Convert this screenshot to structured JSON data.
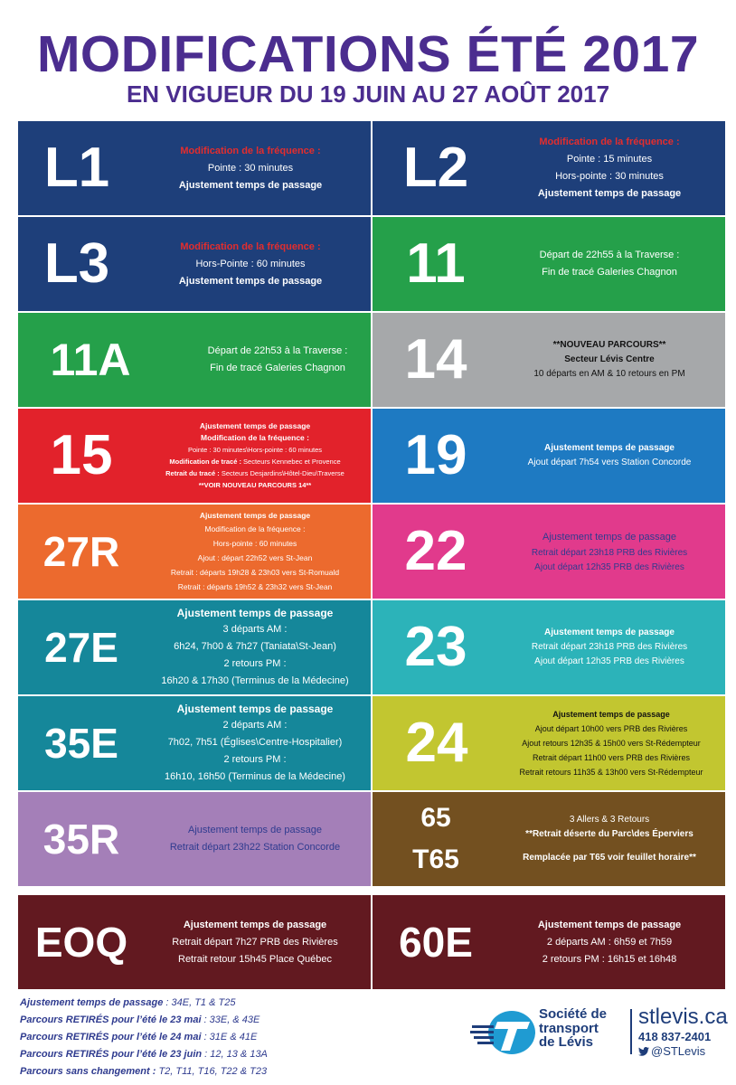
{
  "header": {
    "title": "MODIFICATIONS ÉTÉ 2017",
    "subtitle": "EN VIGUEUR DU 19 JUIN AU 27 AOÛT 2017"
  },
  "routes": {
    "l1": {
      "number": "L1",
      "bg": "#1e3f7a",
      "line1": "Modification de la fréquence :",
      "line2": "Pointe : 30 minutes",
      "line3": "Ajustement temps de passage"
    },
    "l2": {
      "number": "L2",
      "bg": "#1e3f7a",
      "line1": "Modification de la fréquence :",
      "line2": "Pointe : 15 minutes",
      "line3": "Hors-pointe : 30 minutes",
      "line4": "Ajustement temps de passage"
    },
    "l3": {
      "number": "L3",
      "bg": "#1e3f7a",
      "line1": "Modification de la fréquence :",
      "line2": "Hors-Pointe : 60 minutes",
      "line3": "Ajustement temps de passage"
    },
    "r11": {
      "number": "11",
      "bg": "#25a04a",
      "line1": "Départ de 22h55 à la Traverse :",
      "line2": "Fin de tracé Galeries Chagnon"
    },
    "r11a": {
      "number": "11A",
      "bg": "#25a04a",
      "line1": "Départ de 22h53 à la Traverse :",
      "line2": "Fin de tracé Galeries Chagnon"
    },
    "r14": {
      "number": "14",
      "bg": "#a6a8aa",
      "line1": "**NOUVEAU PARCOURS**",
      "line2": "Secteur Lévis Centre",
      "line3": "10 départs en AM & 10 retours en PM"
    },
    "r15": {
      "number": "15",
      "bg": "#e2222b",
      "line1": "Ajustement temps de passage",
      "line2": "Modification de la fréquence :",
      "line3": "Pointe : 30 minutes\\Hors-pointe : 60 minutes",
      "line4_label": "Modification de tracé :",
      "line4_text": " Secteurs Kennebec et Provence",
      "line5_label": "Retrait du tracé :",
      "line5_text": " Secteurs Desjardins\\Hôtel-Dieu\\Traverse",
      "line6": "**VOIR NOUVEAU PARCOURS 14**"
    },
    "r19": {
      "number": "19",
      "bg": "#1e7ac2",
      "line1": "Ajustement temps de passage",
      "line2": "Ajout départ 7h54 vers Station Concorde"
    },
    "r27r": {
      "number": "27R",
      "bg": "#ec6a2e",
      "line1": "Ajustement temps de passage",
      "line2": "Modification de la fréquence :",
      "line3": "Hors-pointe : 60 minutes",
      "line4": "Ajout : départ 22h52 vers St-Jean",
      "line5": "Retrait : départs 19h28 & 23h03 vers St-Romuald",
      "line6": "Retrait : départs 19h52 & 23h32 vers St-Jean"
    },
    "r22": {
      "number": "22",
      "bg": "#e13a8c",
      "line1": "Ajustement temps de passage",
      "line2": "Retrait départ 23h18 PRB des Rivières",
      "line3": "Ajout départ 12h35 PRB des Rivières"
    },
    "r27e": {
      "number": "27E",
      "bg": "#15879a",
      "line1": "Ajustement temps de passage",
      "line2": "3 départs AM :",
      "line3": "6h24, 7h00 & 7h27 (Taniata\\St-Jean)",
      "line4": "2 retours PM :",
      "line5": "16h20 & 17h30 (Terminus de la Médecine)"
    },
    "r23": {
      "number": "23",
      "bg": "#2cb3b9",
      "line1": "Ajustement temps de passage",
      "line2": "Retrait départ 23h18 PRB des Rivières",
      "line3": "Ajout départ 12h35 PRB des Rivières"
    },
    "r35e": {
      "number": "35E",
      "bg": "#15879a",
      "line1": "Ajustement temps de passage",
      "line2": "2 départs AM :",
      "line3": "7h02, 7h51 (Églises\\Centre-Hospitalier)",
      "line4": "2 retours PM :",
      "line5": "16h10, 16h50 (Terminus de la Médecine)"
    },
    "r24": {
      "number": "24",
      "bg": "#c2c630",
      "line1": "Ajustement temps de passage",
      "line2": "Ajout départ 10h00 vers PRB des Rivières",
      "line3": "Ajout retours 12h35 & 15h00 vers St-Rédempteur",
      "line4": "Retrait départ 11h00 vers PRB des Rivières",
      "line5": "Retrait retours 11h35 & 13h00 vers St-Rédempteur"
    },
    "r35r": {
      "number": "35R",
      "bg": "#a47fb8",
      "line1": "Ajustement temps de passage",
      "line2": "Retrait départ 23h22 Station Concorde"
    },
    "r65": {
      "number": "65",
      "number2": "T65",
      "bg": "#735020",
      "line1": "3 Allers & 3 Retours",
      "line2": "**Retrait déserte du Parc\\des Éperviers",
      "line3": "Remplacée par T65 voir feuillet horaire**"
    },
    "eoq": {
      "number": "EOQ",
      "bg": "#621920",
      "line1": "Ajustement temps de passage",
      "line2": "Retrait départ 7h27 PRB des Rivières",
      "line3": "Retrait retour 15h45 Place Québec"
    },
    "r60e": {
      "number": "60E",
      "bg": "#621920",
      "line1": "Ajustement temps de passage",
      "line2": "2 départs AM : 6h59 et 7h59",
      "line3": "2 retours PM : 16h15 et 16h48"
    }
  },
  "footer": {
    "notes": [
      {
        "label": "Ajustement temps de passage",
        "text": " : 34E, T1 & T25"
      },
      {
        "label": "Parcours RETIRÉS  pour l’été le 23 mai",
        "text": " : 33E, & 43E"
      },
      {
        "label": "Parcours RETIRÉS pour l’été le 24 mai",
        "text": " : 31E & 41E"
      },
      {
        "label": "Parcours RETIRÉS pour l’été le 23 juin",
        "text": " : 12, 13 & 13A"
      },
      {
        "label": "Parcours sans changement :",
        "text": " T2, T11, T16, T22 & T23"
      }
    ]
  },
  "logo": {
    "org_line1": "Société de",
    "org_line2": "transport",
    "org_line3": "de Lévis",
    "website": "stlevis.ca",
    "phone": "418 837-2401",
    "twitter": "@STLevis",
    "color": "#1e3d7a"
  }
}
